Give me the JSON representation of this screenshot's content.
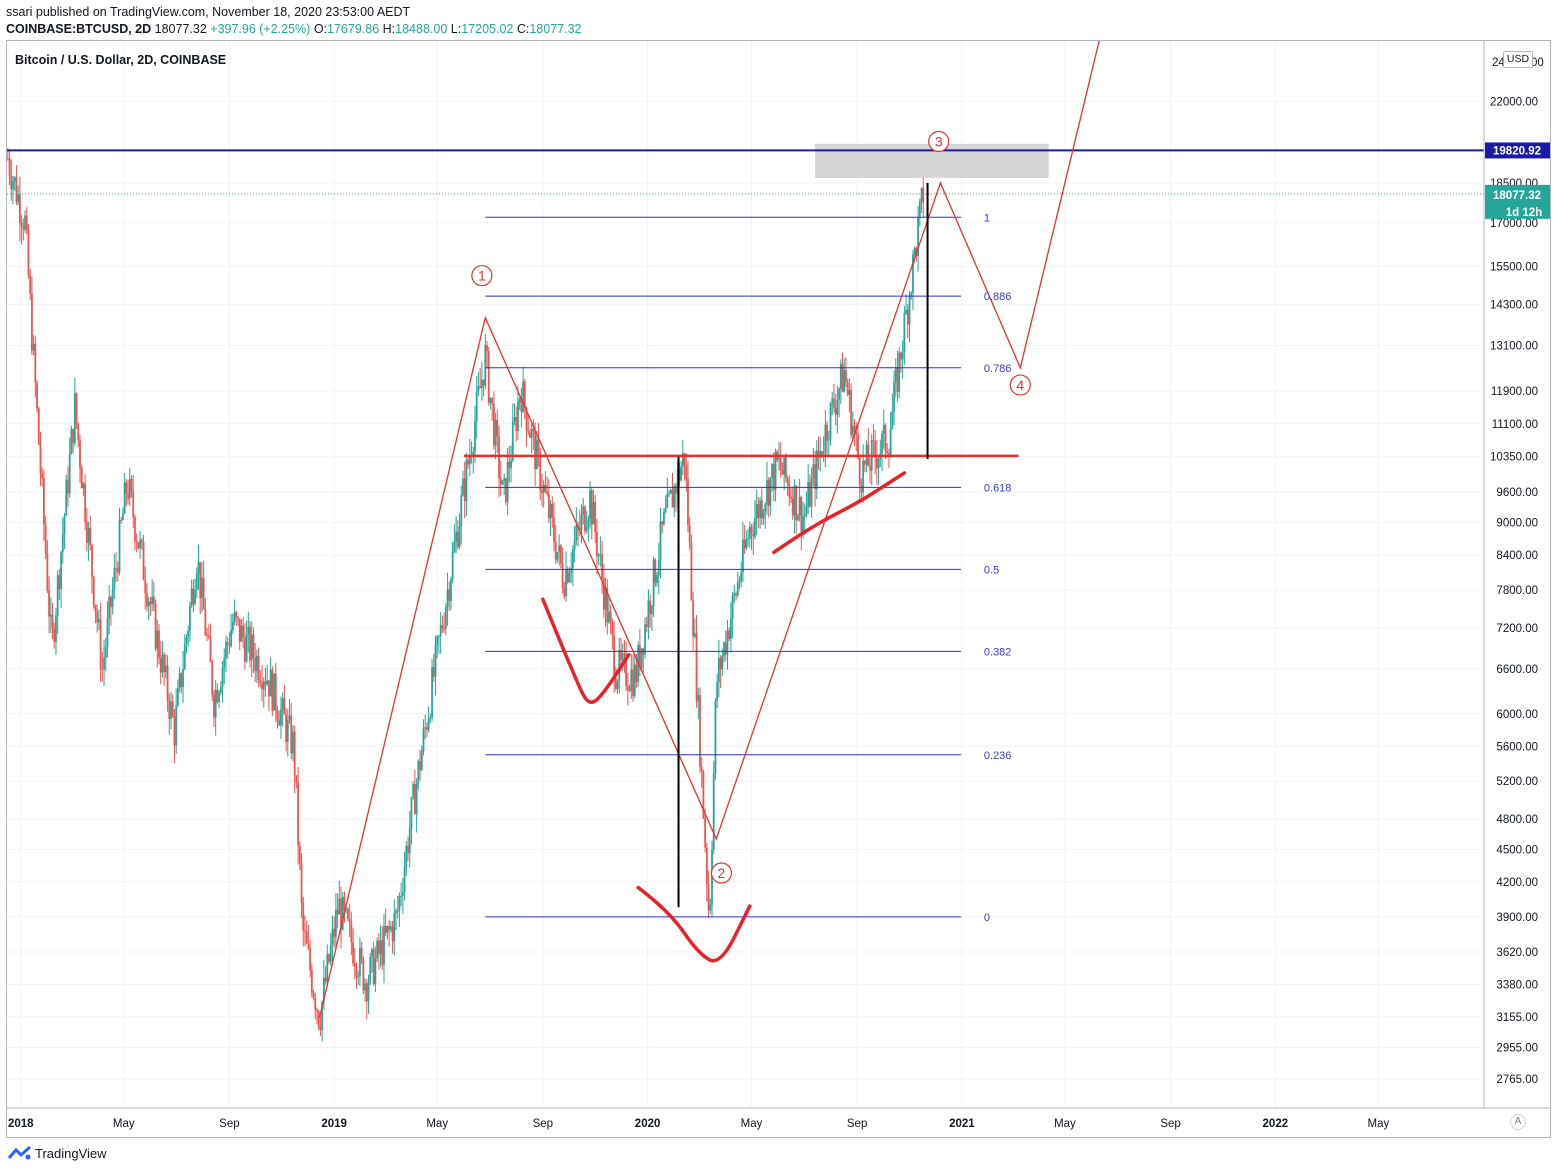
{
  "header": {
    "published": "ssari published on TradingView.com, November 18, 2020 23:53:00 AEDT",
    "symbol": "COINBASE:BTCUSD, 2D",
    "last": "18077.32",
    "change": "+397.96 (+2.25%)",
    "o_label": "O:",
    "o": "17679.86",
    "h_label": "H:",
    "h": "18488.00",
    "l_label": "L:",
    "l": "17205.02",
    "c_label": "C:",
    "c": "18077.32"
  },
  "pair_title": "Bitcoin / U.S. Dollar, 2D, COINBASE",
  "currency": "USD",
  "auto_label": "A",
  "footer": {
    "brand": "TradingView"
  },
  "chart_data": {
    "type": "line",
    "scale": "log",
    "ylim": [
      2600,
      25000
    ],
    "xlim": [
      "2017-12-16",
      "2022-09-01"
    ],
    "grid": true,
    "y_ticks": [
      "22000.00",
      "18500.00",
      "17000.00",
      "15500.00",
      "14300.00",
      "13100.00",
      "11900.00",
      "11100.00",
      "10350.00",
      "9600.00",
      "9000.00",
      "8400.00",
      "7800.00",
      "7200.00",
      "6600.00",
      "6000.00",
      "5600.00",
      "5200.00",
      "4800.00",
      "4500.00",
      "4200.00",
      "3900.00",
      "3620.00",
      "3380.00",
      "3155.00",
      "2955.00",
      "2765.00"
    ],
    "top_tick_partial": "24",
    "top_tick_partial_right": "00",
    "x_ticks": [
      {
        "label": "2018",
        "date": "2018-01-01",
        "bold": true
      },
      {
        "label": "May",
        "date": "2018-05-01",
        "bold": false
      },
      {
        "label": "Sep",
        "date": "2018-09-01",
        "bold": false
      },
      {
        "label": "2019",
        "date": "2019-01-01",
        "bold": true
      },
      {
        "label": "May",
        "date": "2019-05-01",
        "bold": false
      },
      {
        "label": "Sep",
        "date": "2019-09-01",
        "bold": false
      },
      {
        "label": "2020",
        "date": "2020-01-01",
        "bold": true
      },
      {
        "label": "May",
        "date": "2020-05-01",
        "bold": false
      },
      {
        "label": "Sep",
        "date": "2020-09-01",
        "bold": false
      },
      {
        "label": "2021",
        "date": "2021-01-01",
        "bold": true
      },
      {
        "label": "May",
        "date": "2021-05-01",
        "bold": false
      },
      {
        "label": "Sep",
        "date": "2021-09-01",
        "bold": false
      },
      {
        "label": "2022",
        "date": "2022-01-01",
        "bold": true
      },
      {
        "label": "May",
        "date": "2022-05-01",
        "bold": false
      }
    ],
    "price_path": [
      [
        "2017-12-17",
        19500
      ],
      [
        "2018-01-06",
        17000
      ],
      [
        "2018-02-06",
        6900
      ],
      [
        "2018-03-05",
        11500
      ],
      [
        "2018-04-06",
        6600
      ],
      [
        "2018-05-05",
        9800
      ],
      [
        "2018-06-29",
        5800
      ],
      [
        "2018-07-25",
        8400
      ],
      [
        "2018-08-14",
        6200
      ],
      [
        "2018-09-05",
        7300
      ],
      [
        "2018-10-15",
        6500
      ],
      [
        "2018-11-15",
        5600
      ],
      [
        "2018-11-25",
        3800
      ],
      [
        "2018-12-15",
        3150
      ],
      [
        "2019-01-06",
        4000
      ],
      [
        "2019-02-07",
        3400
      ],
      [
        "2019-03-15",
        3900
      ],
      [
        "2019-04-02",
        4900
      ],
      [
        "2019-05-13",
        7800
      ],
      [
        "2019-06-26",
        12800
      ],
      [
        "2019-07-17",
        9400
      ],
      [
        "2019-08-06",
        12000
      ],
      [
        "2019-09-25",
        8000
      ],
      [
        "2019-10-26",
        9500
      ],
      [
        "2019-11-25",
        6600
      ],
      [
        "2019-12-18",
        6500
      ],
      [
        "2020-01-19",
        8900
      ],
      [
        "2020-02-13",
        10400
      ],
      [
        "2020-03-13",
        3850
      ],
      [
        "2020-03-21",
        6400
      ],
      [
        "2020-04-29",
        8900
      ],
      [
        "2020-06-01",
        10200
      ],
      [
        "2020-07-01",
        9100
      ],
      [
        "2020-07-27",
        11000
      ],
      [
        "2020-08-17",
        12400
      ],
      [
        "2020-09-05",
        10000
      ],
      [
        "2020-10-08",
        10800
      ],
      [
        "2020-11-05",
        15500
      ],
      [
        "2020-11-17",
        18077
      ]
    ],
    "resistance": {
      "value": 19820.92,
      "label": "19820.92"
    },
    "last_price": {
      "value": 18077.32,
      "label": "18077.32",
      "countdown": "1d 12h"
    },
    "fib_levels": [
      {
        "label": "1",
        "value": 17200
      },
      {
        "label": "0.886",
        "value": 14550
      },
      {
        "label": "0.786",
        "value": 12500
      },
      {
        "label": "0.618",
        "value": 9700
      },
      {
        "label": "0.5",
        "value": 8150
      },
      {
        "label": "0.382",
        "value": 6850
      },
      {
        "label": "0.236",
        "value": 5500
      },
      {
        "label": "0",
        "value": 3900
      }
    ],
    "fib_range": [
      "2019-06-26",
      "2020-12-31"
    ],
    "fib_label_date": "2021-01-01",
    "wave_path": [
      [
        "2018-12-15",
        3150
      ],
      [
        "2019-06-26",
        13900
      ],
      [
        "2020-03-21",
        4600
      ],
      [
        "2020-12-07",
        18500
      ],
      [
        "2021-03-10",
        12500
      ],
      [
        "2021-06-15",
        26000
      ]
    ],
    "wave_labels": [
      {
        "label": "1",
        "date": "2019-06-22",
        "value": 15200
      },
      {
        "label": "2",
        "date": "2020-03-27",
        "value": 4280
      },
      {
        "label": "3",
        "date": "2020-12-05",
        "value": 20200
      },
      {
        "label": "4",
        "date": "2021-03-10",
        "value": 12050
      }
    ],
    "neckline": {
      "from": [
        "2019-06-01",
        10370
      ],
      "to": [
        "2021-03-08",
        10370
      ]
    },
    "grey_zone": {
      "from": [
        "2020-07-14",
        18700
      ],
      "to": [
        "2021-04-12",
        20100
      ]
    },
    "measure_lines": [
      {
        "date": "2020-02-06",
        "from": 3980,
        "to": 10350
      },
      {
        "date": "2020-11-22",
        "from": 10300,
        "to": 18500
      }
    ],
    "curves": [
      [
        [
          "2019-09-01",
          7650
        ],
        [
          "2019-10-11",
          6400
        ],
        [
          "2019-10-25",
          6100
        ],
        [
          "2019-11-10",
          6250
        ],
        [
          "2019-12-10",
          6800
        ]
      ],
      [
        [
          "2019-12-21",
          4150
        ],
        [
          "2020-01-26",
          3950
        ],
        [
          "2020-03-01",
          3600
        ],
        [
          "2020-03-26",
          3520
        ],
        [
          "2020-04-29",
          3990
        ]
      ],
      [
        [
          "2020-05-27",
          8450
        ],
        [
          "2020-07-07",
          8900
        ],
        [
          "2020-09-03",
          9400
        ],
        [
          "2020-09-30",
          9700
        ],
        [
          "2020-10-26",
          10000
        ]
      ]
    ]
  }
}
